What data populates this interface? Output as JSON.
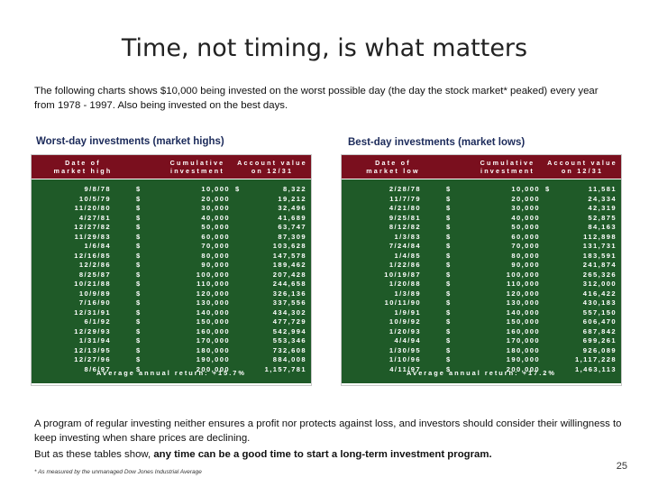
{
  "title": "Time, not timing, is what matters",
  "intro": "The following charts shows $10,000 being invested on the worst possible day (the day the stock market* peaked) every year from 1978 - 1997.  Also being invested on the best days.",
  "worst": {
    "heading": "Worst-day investments (market highs)",
    "headers": [
      "Date of\nmarket high",
      "Cumulative\ninvestment",
      "Account value\non 12/31"
    ],
    "rows": [
      [
        "9/8/78",
        "10,000",
        "8,322"
      ],
      [
        "10/5/79",
        "20,000",
        "19,212"
      ],
      [
        "11/20/80",
        "30,000",
        "32,496"
      ],
      [
        "4/27/81",
        "40,000",
        "41,689"
      ],
      [
        "12/27/82",
        "50,000",
        "63,747"
      ],
      [
        "11/29/83",
        "60,000",
        "87,309"
      ],
      [
        "1/6/84",
        "70,000",
        "103,628"
      ],
      [
        "12/16/85",
        "80,000",
        "147,578"
      ],
      [
        "12/2/86",
        "90,000",
        "189,462"
      ],
      [
        "8/25/87",
        "100,000",
        "207,428"
      ],
      [
        "10/21/88",
        "110,000",
        "244,658"
      ],
      [
        "10/9/89",
        "120,000",
        "326,136"
      ],
      [
        "7/16/90",
        "130,000",
        "337,556"
      ],
      [
        "12/31/91",
        "140,000",
        "434,302"
      ],
      [
        "6/1/92",
        "150,000",
        "477,729"
      ],
      [
        "12/29/93",
        "160,000",
        "542,994"
      ],
      [
        "1/31/94",
        "170,000",
        "553,346"
      ],
      [
        "12/13/95",
        "180,000",
        "732,608"
      ],
      [
        "12/27/96",
        "190,000",
        "884,008"
      ],
      [
        "8/6/97",
        "200,000",
        "1,157,781"
      ]
    ],
    "average": "Average annual return: +15.7%"
  },
  "best": {
    "heading": "Best-day investments (market lows)",
    "headers": [
      "Date of\nmarket low",
      "Cumulative\ninvestment",
      "Account value\non 12/31"
    ],
    "rows": [
      [
        "2/28/78",
        "10,000",
        "11,581"
      ],
      [
        "11/7/79",
        "20,000",
        "24,334"
      ],
      [
        "4/21/80",
        "30,000",
        "42,319"
      ],
      [
        "9/25/81",
        "40,000",
        "52,875"
      ],
      [
        "8/12/82",
        "50,000",
        "84,163"
      ],
      [
        "1/3/83",
        "60,000",
        "112,898"
      ],
      [
        "7/24/84",
        "70,000",
        "131,731"
      ],
      [
        "1/4/85",
        "80,000",
        "183,591"
      ],
      [
        "1/22/86",
        "90,000",
        "241,874"
      ],
      [
        "10/19/87",
        "100,000",
        "265,326"
      ],
      [
        "1/20/88",
        "110,000",
        "312,000"
      ],
      [
        "1/3/89",
        "120,000",
        "416,422"
      ],
      [
        "10/11/90",
        "130,000",
        "430,183"
      ],
      [
        "1/9/91",
        "140,000",
        "557,150"
      ],
      [
        "10/9/92",
        "150,000",
        "606,470"
      ],
      [
        "1/20/93",
        "160,000",
        "687,842"
      ],
      [
        "4/4/94",
        "170,000",
        "699,261"
      ],
      [
        "1/30/95",
        "180,000",
        "926,089"
      ],
      [
        "1/10/96",
        "190,000",
        "1,117,228"
      ],
      [
        "4/11/97",
        "200,000",
        "1,463,113"
      ]
    ],
    "average": "Average annual return: +17.2%"
  },
  "currency": "$",
  "disclaimer": "A program of regular investing neither ensures a profit nor protects  against loss, and investors should consider their willingness to keep investing when share prices are declining.",
  "closing_prefix": "But as these tables show, ",
  "closing_bold": "any time can be a good time to start a long-term investment program.",
  "footnote": "*  As measured by the unmanaged Dow Jones Industrial Average",
  "page_number": "25",
  "colors": {
    "header_bg": "#7a0f1e",
    "body_bg": "#1f5a28",
    "heading": "#1b2a5a"
  }
}
